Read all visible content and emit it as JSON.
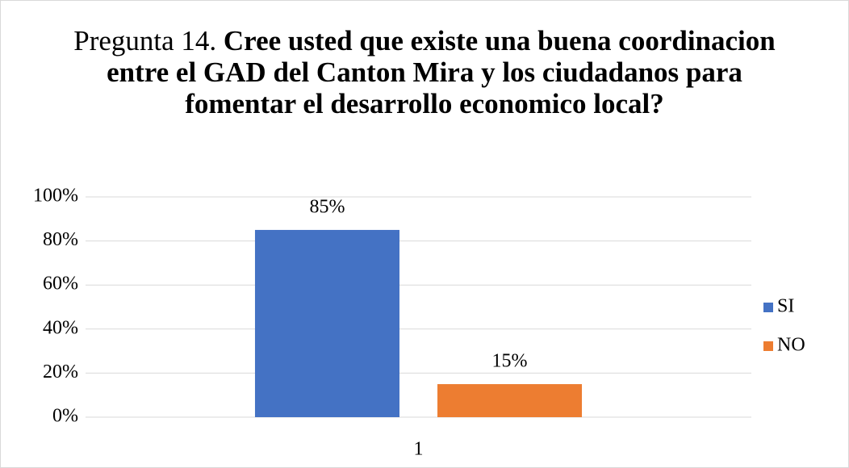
{
  "chart_data": {
    "type": "bar",
    "title_parts": [
      "Pregunta 14.",
      "Cree usted que existe una buena coordinacion entre el GAD del Canton Mira y los ciudadanos para fomentar el desarrollo economico local?"
    ],
    "categories": [
      "1"
    ],
    "series": [
      {
        "name": "SI",
        "color": "#4472c4",
        "values": [
          85
        ],
        "value_labels": [
          "85%"
        ]
      },
      {
        "name": "NO",
        "color": "#ed7d31",
        "values": [
          15
        ],
        "value_labels": [
          "15%"
        ]
      }
    ],
    "ylim": [
      0,
      100
    ],
    "yticks": [
      {
        "value": 0,
        "label": "0%"
      },
      {
        "value": 20,
        "label": "20%"
      },
      {
        "value": 40,
        "label": "40%"
      },
      {
        "value": 60,
        "label": "60%"
      },
      {
        "value": 80,
        "label": "80%"
      },
      {
        "value": 100,
        "label": "100%"
      }
    ],
    "grid": true,
    "legend": "right"
  }
}
